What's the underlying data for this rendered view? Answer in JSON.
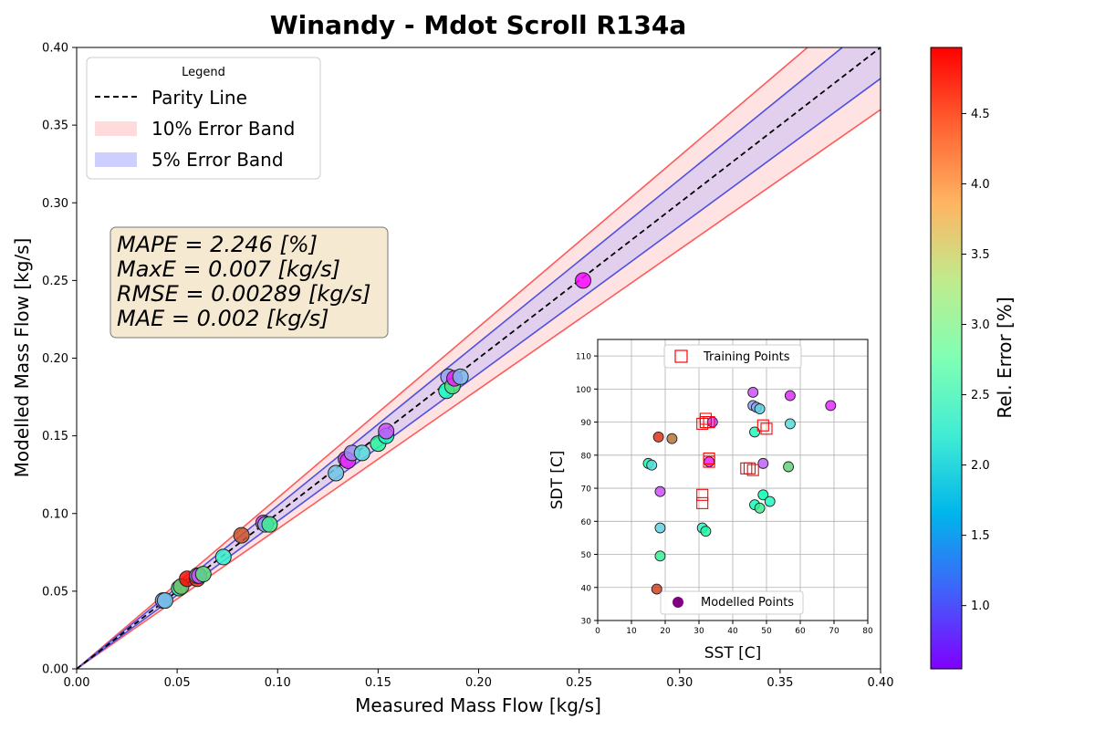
{
  "title": "Winandy - Mdot Scroll R134a",
  "colors": {
    "parity": "#000000",
    "band10_fill": "#ffb0b0",
    "band10_edge": "#ff5a5a",
    "band5_fill": "#a8a8ff",
    "band5_edge": "#5050e0",
    "metrics_box": "#f6e9d2",
    "training_marker": "#ff0000",
    "modelled_marker": "#800080"
  },
  "legend": {
    "title": "Legend",
    "items": [
      "Parity Line",
      "10% Error Band",
      "5% Error Band"
    ]
  },
  "metrics": [
    "MAPE = 2.246 [%]",
    "MaxE = 0.007 [kg/s]",
    "RMSE = 0.00289 [kg/s]",
    "MAE = 0.002 [kg/s]"
  ],
  "colorbar": {
    "label": "Rel. Error [%]",
    "ticks": [
      "1.0",
      "1.5",
      "2.0",
      "2.5",
      "3.0",
      "3.5",
      "4.0",
      "4.5"
    ],
    "tick_values": [
      1.0,
      1.5,
      2.0,
      2.5,
      3.0,
      3.5,
      4.0,
      4.5
    ],
    "range": [
      0.55,
      4.97
    ],
    "colormap": "rainbow"
  },
  "chart_data": [
    {
      "type": "scatter",
      "title": "Winandy - Mdot Scroll R134a",
      "xlabel": "Measured Mass Flow [kg/s]",
      "ylabel": "Modelled Mass Flow [kg/s]",
      "xlim": [
        0.0,
        0.4
      ],
      "ylim": [
        0.0,
        0.4
      ],
      "xticks": [
        "0.00",
        "0.05",
        "0.10",
        "0.15",
        "0.20",
        "0.25",
        "0.30",
        "0.35",
        "0.40"
      ],
      "yticks": [
        "0.00",
        "0.05",
        "0.10",
        "0.15",
        "0.20",
        "0.25",
        "0.30",
        "0.35",
        "0.40"
      ],
      "grid": false,
      "legend_position": "top-left",
      "error_bands_percent": [
        10,
        5
      ],
      "points": [
        {
          "x": 0.043,
          "y": 0.044,
          "err": 1.3
        },
        {
          "x": 0.044,
          "y": 0.044,
          "err": 1.8
        },
        {
          "x": 0.051,
          "y": 0.052,
          "err": 3.0
        },
        {
          "x": 0.052,
          "y": 0.053,
          "err": 3.8
        },
        {
          "x": 0.055,
          "y": 0.058,
          "err": 4.9
        },
        {
          "x": 0.06,
          "y": 0.058,
          "err": 4.7
        },
        {
          "x": 0.06,
          "y": 0.06,
          "err": 1.4
        },
        {
          "x": 0.061,
          "y": 0.06,
          "err": 1.0
        },
        {
          "x": 0.063,
          "y": 0.061,
          "err": 3.5
        },
        {
          "x": 0.073,
          "y": 0.072,
          "err": 2.3
        },
        {
          "x": 0.082,
          "y": 0.086,
          "err": 4.5
        },
        {
          "x": 0.093,
          "y": 0.094,
          "err": 0.8
        },
        {
          "x": 0.094,
          "y": 0.093,
          "err": 1.6
        },
        {
          "x": 0.096,
          "y": 0.093,
          "err": 3.3
        },
        {
          "x": 0.129,
          "y": 0.126,
          "err": 1.8
        },
        {
          "x": 0.134,
          "y": 0.135,
          "err": 0.9
        },
        {
          "x": 0.135,
          "y": 0.134,
          "err": 0.8
        },
        {
          "x": 0.137,
          "y": 0.139,
          "err": 1.4
        },
        {
          "x": 0.142,
          "y": 0.139,
          "err": 2.0
        },
        {
          "x": 0.15,
          "y": 0.145,
          "err": 3.1
        },
        {
          "x": 0.154,
          "y": 0.15,
          "err": 2.6
        },
        {
          "x": 0.154,
          "y": 0.153,
          "err": 1.0
        },
        {
          "x": 0.184,
          "y": 0.179,
          "err": 2.6
        },
        {
          "x": 0.185,
          "y": 0.188,
          "err": 1.5
        },
        {
          "x": 0.187,
          "y": 0.182,
          "err": 3.5
        },
        {
          "x": 0.188,
          "y": 0.187,
          "err": 0.7
        },
        {
          "x": 0.191,
          "y": 0.188,
          "err": 1.7
        },
        {
          "x": 0.252,
          "y": 0.25,
          "err": 0.6
        }
      ]
    },
    {
      "type": "scatter",
      "xlabel": "SST [C]",
      "ylabel": "SDT [C]",
      "xlim": [
        0,
        80
      ],
      "ylim": [
        30,
        115
      ],
      "xticks": [
        "0",
        "10",
        "20",
        "30",
        "40",
        "50",
        "60",
        "70",
        "80"
      ],
      "yticks": [
        "30",
        "40",
        "50",
        "60",
        "70",
        "80",
        "90",
        "100",
        "110"
      ],
      "grid": true,
      "series": [
        {
          "name": "Training Points",
          "marker": "hollow-square",
          "points": [
            [
              31,
              89.5
            ],
            [
              32,
              90
            ],
            [
              33,
              90
            ],
            [
              32,
              91
            ],
            [
              33,
              78
            ],
            [
              33,
              79
            ],
            [
              31,
              68
            ],
            [
              31,
              65.5
            ],
            [
              45,
              76
            ],
            [
              44,
              76
            ],
            [
              46,
              75.5
            ],
            [
              49,
              89
            ],
            [
              50,
              88
            ]
          ]
        },
        {
          "name": "Modelled Points",
          "marker": "filled-circle",
          "points": [
            {
              "x": 18,
              "y": 85.5,
              "err": 4.7
            },
            {
              "x": 22,
              "y": 85,
              "err": 4.3
            },
            {
              "x": 15,
              "y": 77.5,
              "err": 2.9
            },
            {
              "x": 16,
              "y": 77,
              "err": 2.0
            },
            {
              "x": 18.5,
              "y": 69,
              "err": 1.0
            },
            {
              "x": 18.5,
              "y": 58,
              "err": 1.9
            },
            {
              "x": 18.5,
              "y": 49.5,
              "err": 3.2
            },
            {
              "x": 17.5,
              "y": 39.5,
              "err": 4.6
            },
            {
              "x": 31,
              "y": 58,
              "err": 2.4
            },
            {
              "x": 32,
              "y": 57,
              "err": 3.0
            },
            {
              "x": 33,
              "y": 78,
              "err": 0.7
            },
            {
              "x": 34,
              "y": 90,
              "err": 0.9
            },
            {
              "x": 46,
              "y": 99,
              "err": 1.0
            },
            {
              "x": 46,
              "y": 95,
              "err": 1.5
            },
            {
              "x": 47,
              "y": 94.5,
              "err": 1.6
            },
            {
              "x": 48,
              "y": 94,
              "err": 1.9
            },
            {
              "x": 46.5,
              "y": 87,
              "err": 2.5
            },
            {
              "x": 49,
              "y": 77.5,
              "err": 1.1
            },
            {
              "x": 46.5,
              "y": 65,
              "err": 2.6
            },
            {
              "x": 48,
              "y": 64,
              "err": 3.3
            },
            {
              "x": 49,
              "y": 68,
              "err": 2.8
            },
            {
              "x": 51,
              "y": 66,
              "err": 2.5
            },
            {
              "x": 57,
              "y": 98,
              "err": 0.8
            },
            {
              "x": 57,
              "y": 89.5,
              "err": 2.0
            },
            {
              "x": 56.5,
              "y": 76.5,
              "err": 3.6
            },
            {
              "x": 69,
              "y": 95,
              "err": 0.8
            }
          ]
        }
      ],
      "legend_positions": [
        "top-center",
        "bottom-center"
      ]
    }
  ]
}
